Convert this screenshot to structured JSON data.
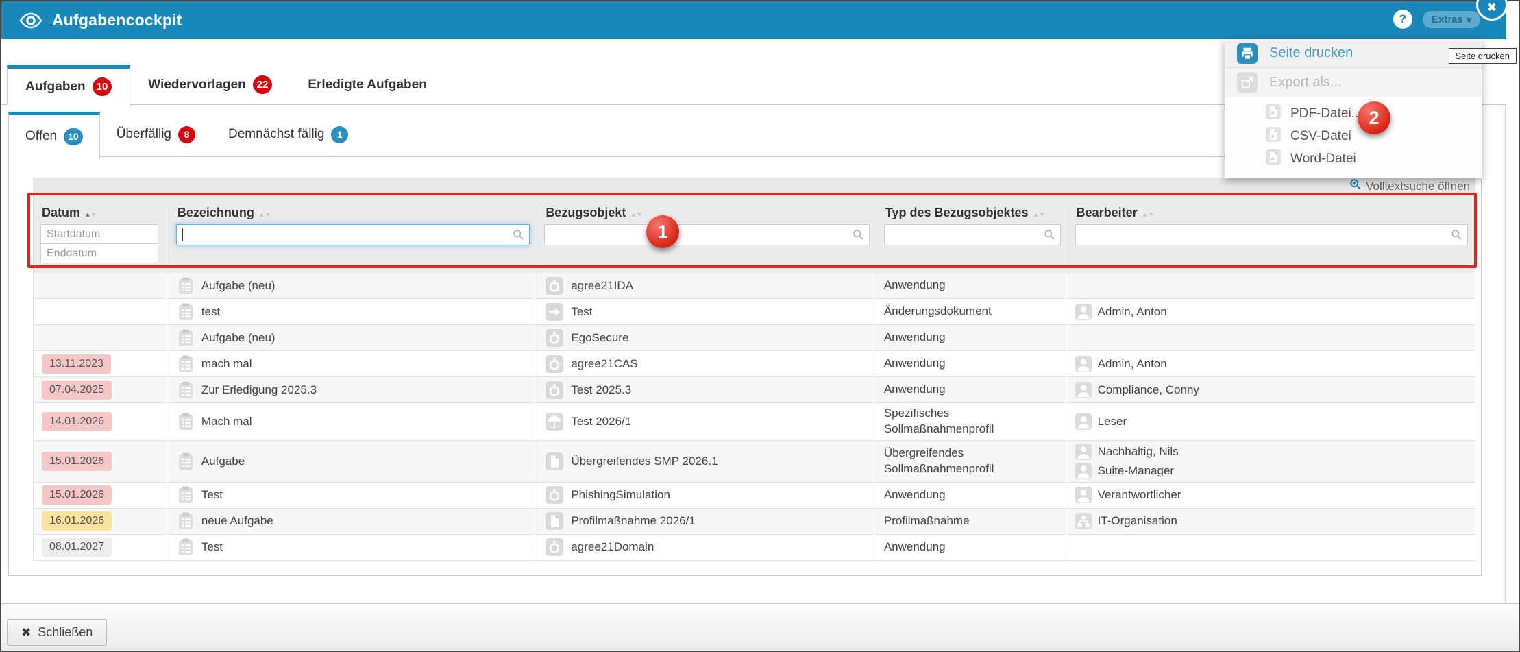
{
  "titlebar": {
    "title": "Aufgabencockpit",
    "help_label": "?",
    "extras_label": "Extras"
  },
  "main_tabs": [
    {
      "label": "Aufgaben",
      "badge": "10"
    },
    {
      "label": "Wiedervorlagen",
      "badge": "22"
    },
    {
      "label": "Erledigte Aufgaben",
      "badge": null
    }
  ],
  "sub_tabs": [
    {
      "label": "Offen",
      "badge": "10"
    },
    {
      "label": "Überfällig",
      "badge": "8"
    },
    {
      "label": "Demnächst fällig",
      "badge": "1"
    }
  ],
  "panel": {
    "fulltext_label": "Volltextsuche öffnen"
  },
  "table": {
    "columns": [
      {
        "label": "Datum",
        "sort": "asc"
      },
      {
        "label": "Bezeichnung",
        "sort": "none"
      },
      {
        "label": "Bezugsobjekt",
        "sort": "none"
      },
      {
        "label": "Typ des Bezugsobjektes",
        "sort": "none"
      },
      {
        "label": "Bearbeiter",
        "sort": "none"
      }
    ],
    "filters": {
      "start_placeholder": "Startdatum",
      "end_placeholder": "Enddatum",
      "search_value": ""
    },
    "rows": [
      {
        "date": null,
        "name": "Aufgabe (neu)",
        "obj": "agree21IDA",
        "obj_icon": "application",
        "typ": "Anwendung",
        "bearbeiter": []
      },
      {
        "date": null,
        "name": "test",
        "obj": "Test",
        "obj_icon": "change-doc",
        "typ": "Änderungsdokument",
        "bearbeiter": [
          {
            "icon": "person",
            "name": "Admin, Anton"
          }
        ]
      },
      {
        "date": null,
        "name": "Aufgabe (neu)",
        "obj": "EgoSecure",
        "obj_icon": "application",
        "typ": "Anwendung",
        "bearbeiter": []
      },
      {
        "date": {
          "text": "13.11.2023",
          "color": "pink"
        },
        "name": "mach mal",
        "obj": "agree21CAS",
        "obj_icon": "application",
        "typ": "Anwendung",
        "bearbeiter": [
          {
            "icon": "person",
            "name": "Admin, Anton"
          }
        ]
      },
      {
        "date": {
          "text": "07.04.2025",
          "color": "pink"
        },
        "name": "Zur Erledigung 2025.3",
        "obj": "Test 2025.3",
        "obj_icon": "application",
        "typ": "Anwendung",
        "bearbeiter": [
          {
            "icon": "person",
            "name": "Compliance, Conny"
          }
        ]
      },
      {
        "date": {
          "text": "14.01.2026",
          "color": "pink"
        },
        "name": "Mach mal",
        "obj": "Test 2026/1",
        "obj_icon": "umbrella",
        "typ": "Spezifisches Sollmaßnahmenprofil",
        "bearbeiter": [
          {
            "icon": "person",
            "name": "Leser"
          }
        ]
      },
      {
        "date": {
          "text": "15.01.2026",
          "color": "pink"
        },
        "name": "Aufgabe",
        "obj": "Übergreifendes SMP 2026.1",
        "obj_icon": "document",
        "typ": "Übergreifendes Sollmaßnahmenprofil",
        "bearbeiter": [
          {
            "icon": "person",
            "name": "Nachhaltig, Nils"
          },
          {
            "icon": "person",
            "name": "Suite-Manager"
          }
        ]
      },
      {
        "date": {
          "text": "15.01.2026",
          "color": "pink"
        },
        "name": "Test",
        "obj": "PhishingSimulation",
        "obj_icon": "application",
        "typ": "Anwendung",
        "bearbeiter": [
          {
            "icon": "person",
            "name": "Verantwortlicher"
          }
        ]
      },
      {
        "date": {
          "text": "16.01.2026",
          "color": "yellow"
        },
        "name": "neue Aufgabe",
        "obj": "Profilmaßnahme 2026/1",
        "obj_icon": "document",
        "typ": "Profilmaßnahme",
        "bearbeiter": [
          {
            "icon": "org",
            "name": "IT-Organisation"
          }
        ]
      },
      {
        "date": {
          "text": "08.01.2027",
          "color": "gray"
        },
        "name": "Test",
        "obj": "agree21Domain",
        "obj_icon": "application",
        "typ": "Anwendung",
        "bearbeiter": []
      }
    ]
  },
  "menu": {
    "print_label": "Seite drucken",
    "export_label": "Export als...",
    "files": [
      "PDF-Datei...",
      "CSV-Datei",
      "Word-Datei"
    ]
  },
  "tooltip": "Seite drucken",
  "annotations": {
    "circle1": "1",
    "circle2": "2"
  },
  "footer": {
    "close_label": "Schließen"
  },
  "colors": {
    "accent": "#1a87b9",
    "badge_red": "#d10a10",
    "badge_blue": "#2a8fbf",
    "annotation_red": "#e0261b",
    "date_pink": "#f5c7c7",
    "date_yellow": "#f8e2a0",
    "date_gray": "#eeeeee"
  }
}
